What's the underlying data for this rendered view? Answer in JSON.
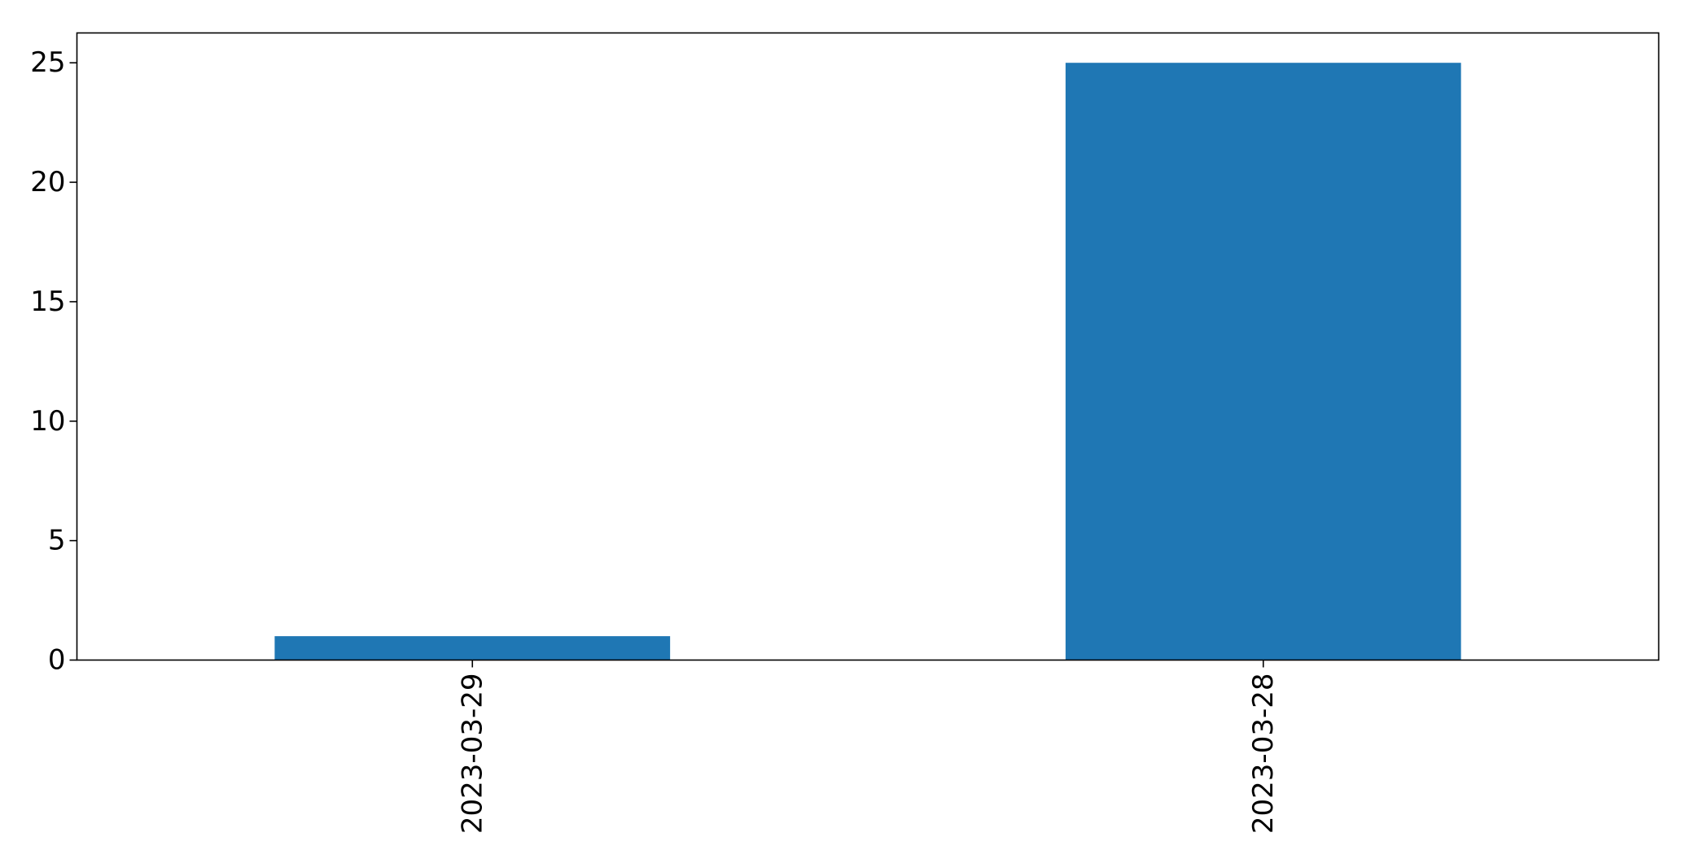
{
  "chart_data": {
    "type": "bar",
    "categories": [
      "2023-03-29",
      "2023-03-28"
    ],
    "values": [
      1,
      25
    ],
    "title": "",
    "xlabel": "",
    "ylabel": "",
    "ylim": [
      0,
      26.25
    ],
    "yticks": [
      0,
      5,
      10,
      15,
      20,
      25
    ],
    "grid": false,
    "legend": "none",
    "bar_color": "#1f77b4",
    "xtick_rotation": "vertical"
  }
}
